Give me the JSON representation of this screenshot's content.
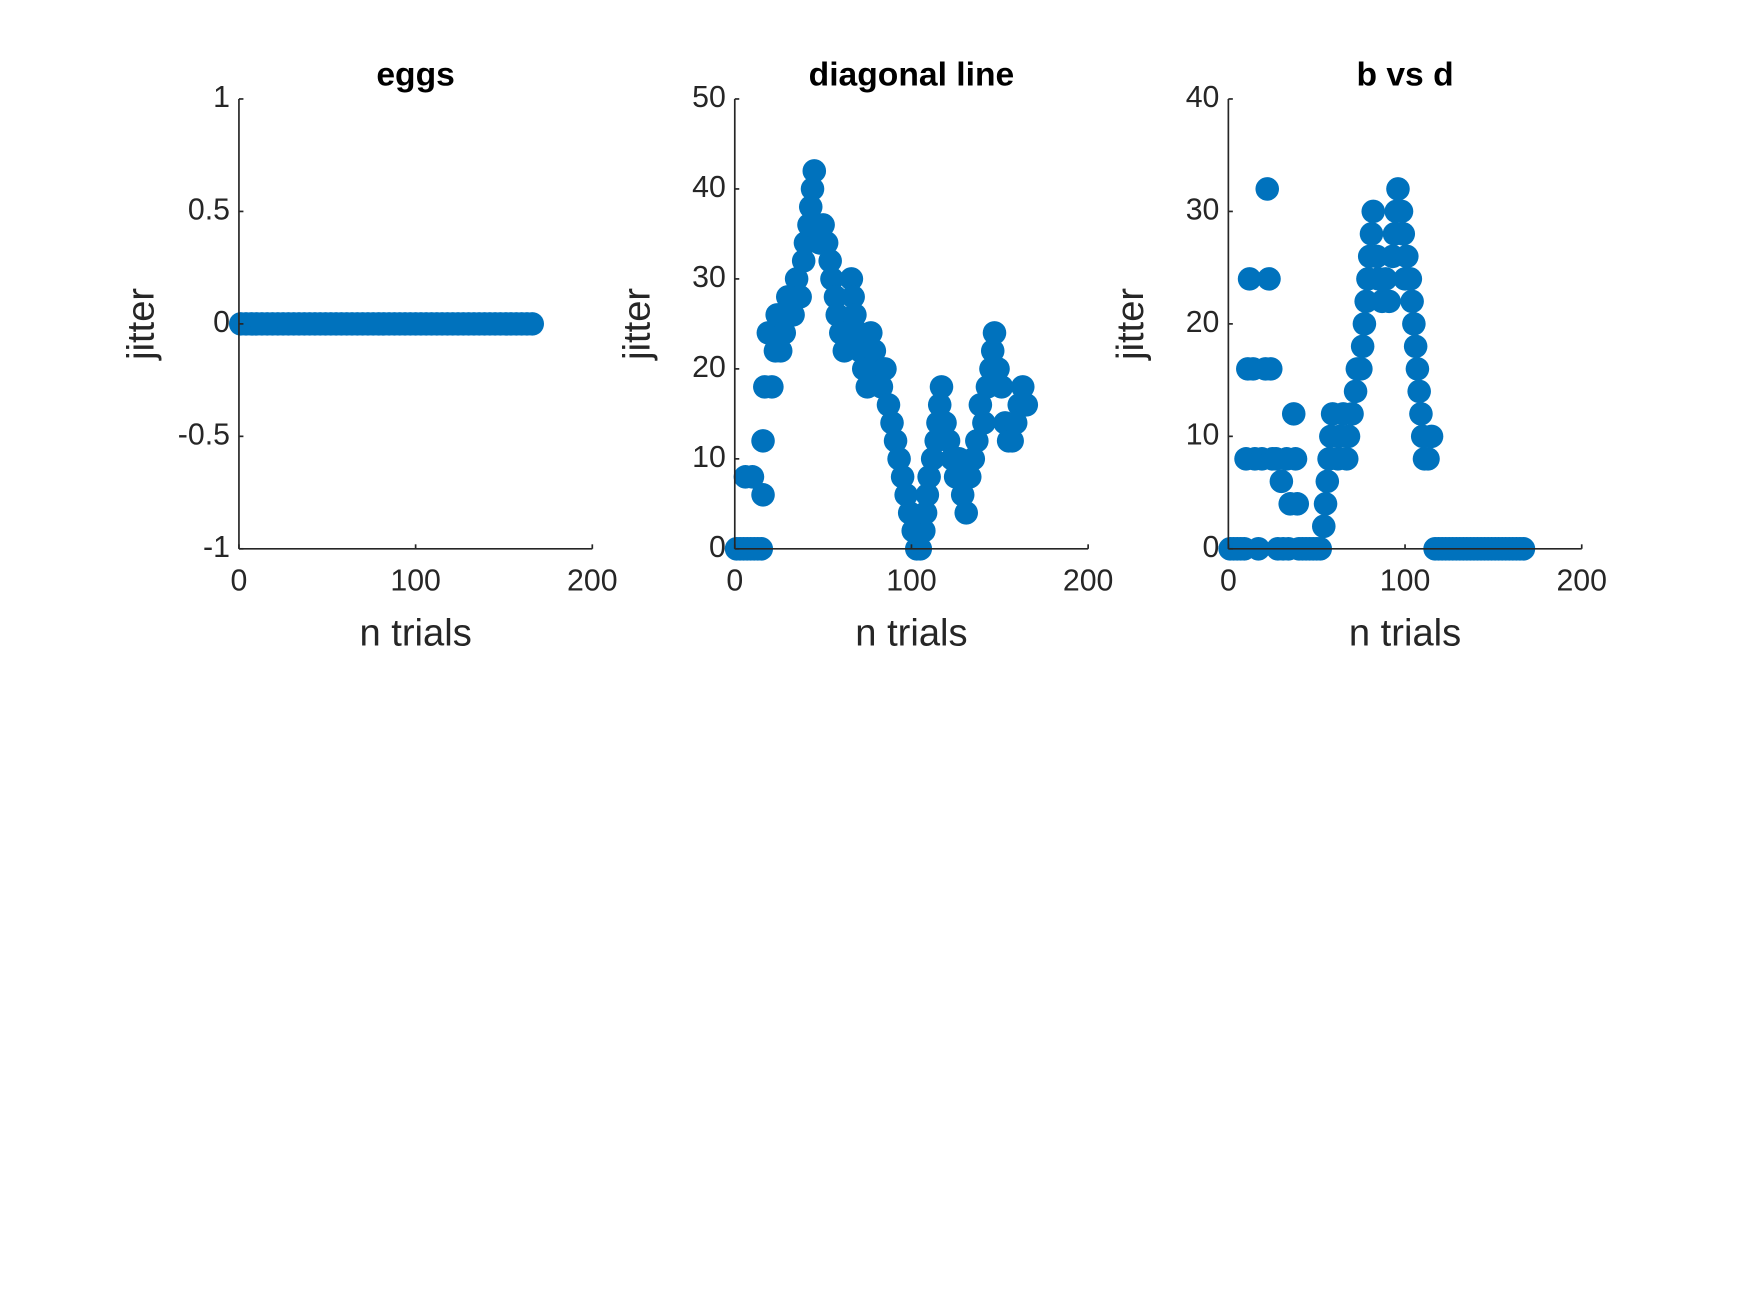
{
  "chart_data": [
    {
      "type": "scatter",
      "title": "eggs",
      "xlabel": "n trials",
      "ylabel": "jitter",
      "color": "#0072bd",
      "x": [
        1,
        4,
        7,
        10,
        13,
        16,
        19,
        22,
        25,
        28,
        31,
        34,
        37,
        40,
        43,
        46,
        49,
        52,
        55,
        58,
        61,
        64,
        67,
        70,
        73,
        76,
        79,
        82,
        85,
        88,
        91,
        94,
        97,
        100,
        103,
        106,
        109,
        112,
        115,
        118,
        121,
        124,
        127,
        130,
        133,
        136,
        139,
        142,
        145,
        148,
        151,
        154,
        157,
        160,
        163,
        166
      ],
      "y": [
        0,
        0,
        0,
        0,
        0,
        0,
        0,
        0,
        0,
        0,
        0,
        0,
        0,
        0,
        0,
        0,
        0,
        0,
        0,
        0,
        0,
        0,
        0,
        0,
        0,
        0,
        0,
        0,
        0,
        0,
        0,
        0,
        0,
        0,
        0,
        0,
        0,
        0,
        0,
        0,
        0,
        0,
        0,
        0,
        0,
        0,
        0,
        0,
        0,
        0,
        0,
        0,
        0,
        0,
        0,
        0
      ],
      "xlim": [
        0,
        200
      ],
      "xticks": [
        0,
        100,
        200
      ],
      "ylim": [
        -1,
        1
      ],
      "yticks": [
        -1,
        -0.5,
        0,
        0.5,
        1
      ]
    },
    {
      "type": "scatter",
      "title": "diagonal line",
      "xlabel": "n trials",
      "ylabel": "jitter",
      "color": "#0072bd",
      "x": [
        1,
        3,
        5,
        7,
        9,
        11,
        13,
        15,
        6,
        10,
        16,
        16,
        17,
        19,
        21,
        23,
        24,
        26,
        28,
        30,
        33,
        35,
        37,
        39,
        40,
        42,
        43,
        44,
        45,
        46,
        48,
        50,
        52,
        54,
        55,
        57,
        58,
        60,
        62,
        64,
        66,
        67,
        68,
        70,
        71,
        73,
        75,
        77,
        79,
        81,
        83,
        85,
        87,
        89,
        91,
        93,
        95,
        97,
        99,
        101,
        103,
        105,
        107,
        108,
        109,
        110,
        112,
        114,
        115,
        116,
        117,
        119,
        121,
        123,
        125,
        127,
        129,
        131,
        133,
        135,
        137,
        139,
        141,
        143,
        145,
        146,
        147,
        149,
        151,
        153,
        155,
        157,
        159,
        161,
        163,
        165
      ],
      "y": [
        0,
        0,
        0,
        0,
        0,
        0,
        0,
        0,
        8,
        8,
        6,
        12,
        18,
        24,
        18,
        22,
        26,
        22,
        24,
        28,
        26,
        30,
        28,
        32,
        34,
        36,
        38,
        40,
        42,
        36,
        34,
        36,
        34,
        32,
        30,
        28,
        26,
        24,
        22,
        24,
        30,
        28,
        26,
        24,
        22,
        20,
        18,
        24,
        22,
        20,
        18,
        20,
        16,
        14,
        12,
        10,
        8,
        6,
        4,
        2,
        0,
        0,
        2,
        4,
        6,
        8,
        10,
        12,
        14,
        16,
        18,
        14,
        12,
        10,
        8,
        10,
        6,
        4,
        8,
        10,
        12,
        16,
        14,
        18,
        20,
        22,
        24,
        20,
        18,
        14,
        12,
        12,
        14,
        16,
        18,
        16
      ],
      "xlim": [
        0,
        200
      ],
      "xticks": [
        0,
        100,
        200
      ],
      "ylim": [
        0,
        50
      ],
      "yticks": [
        0,
        10,
        20,
        30,
        40,
        50
      ]
    },
    {
      "type": "scatter",
      "title": "b vs d",
      "xlabel": "n trials",
      "ylabel": "jitter",
      "color": "#0072bd",
      "x": [
        1,
        3,
        5,
        7,
        9,
        10,
        11,
        12,
        14,
        15,
        17,
        19,
        21,
        22,
        23,
        24,
        25,
        27,
        28,
        30,
        31,
        33,
        34,
        35,
        37,
        38,
        39,
        40,
        42,
        44,
        46,
        48,
        50,
        52,
        54,
        55,
        56,
        57,
        58,
        59,
        62,
        63,
        65,
        67,
        68,
        70,
        72,
        73,
        75,
        76,
        77,
        78,
        79,
        80,
        81,
        82,
        84,
        85,
        87,
        89,
        91,
        93,
        94,
        95,
        96,
        98,
        99,
        100,
        101,
        103,
        104,
        105,
        106,
        107,
        108,
        109,
        110,
        111,
        113,
        115,
        117,
        119,
        121,
        123,
        125,
        127,
        129,
        131,
        133,
        135,
        137,
        139,
        141,
        143,
        145,
        147,
        149,
        151,
        153,
        155,
        157,
        159,
        161,
        163,
        165,
        167
      ],
      "y": [
        0,
        0,
        0,
        0,
        0,
        8,
        16,
        24,
        16,
        8,
        0,
        8,
        16,
        32,
        24,
        16,
        8,
        8,
        0,
        6,
        0,
        8,
        0,
        4,
        12,
        8,
        4,
        0,
        0,
        0,
        0,
        0,
        0,
        0,
        2,
        4,
        6,
        8,
        10,
        12,
        8,
        10,
        12,
        8,
        10,
        12,
        14,
        16,
        16,
        18,
        20,
        22,
        24,
        26,
        28,
        30,
        26,
        24,
        22,
        24,
        22,
        26,
        28,
        30,
        32,
        30,
        28,
        24,
        26,
        24,
        22,
        20,
        18,
        16,
        14,
        12,
        10,
        8,
        8,
        10,
        0,
        0,
        0,
        0,
        0,
        0,
        0,
        0,
        0,
        0,
        0,
        0,
        0,
        0,
        0,
        0,
        0,
        0,
        0,
        0,
        0,
        0,
        0,
        0,
        0,
        0
      ],
      "xlim": [
        0,
        200
      ],
      "xticks": [
        0,
        100,
        200
      ],
      "ylim": [
        0,
        40
      ],
      "yticks": [
        0,
        10,
        20,
        30,
        40
      ]
    }
  ]
}
